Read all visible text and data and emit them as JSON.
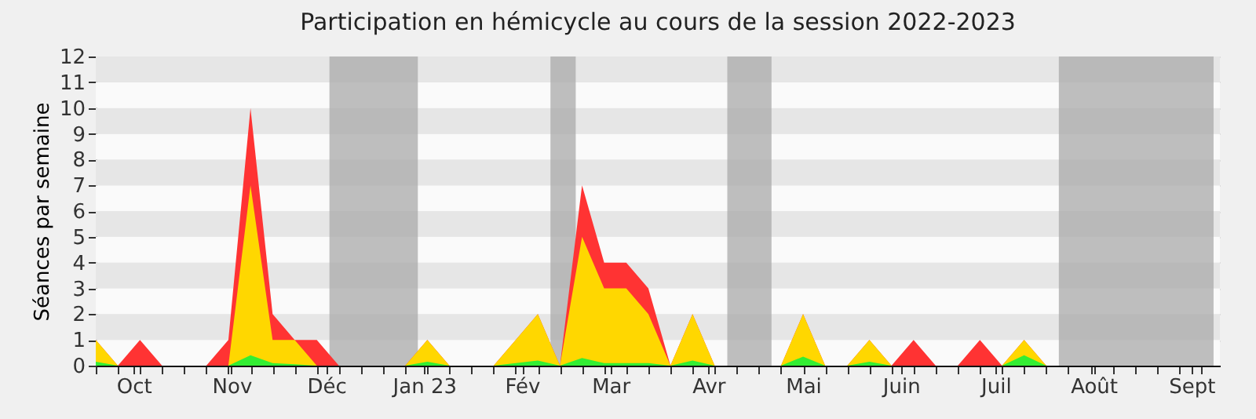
{
  "chart_data": {
    "type": "area",
    "title": "Participation en hémicycle au cours de la session 2022-2023",
    "ylabel": "Séances par semaine",
    "x": [
      "2022-09-19",
      "2022-09-26",
      "2022-10-03",
      "2022-10-10",
      "2022-10-17",
      "2022-10-24",
      "2022-10-31",
      "2022-11-07",
      "2022-11-14",
      "2022-11-21",
      "2022-11-28",
      "2022-12-05",
      "2022-12-12",
      "2022-12-19",
      "2022-12-26",
      "2023-01-02",
      "2023-01-09",
      "2023-01-16",
      "2023-01-23",
      "2023-01-30",
      "2023-02-06",
      "2023-02-13",
      "2023-02-20",
      "2023-02-27",
      "2023-03-06",
      "2023-03-13",
      "2023-03-20",
      "2023-03-27",
      "2023-04-03",
      "2023-04-10",
      "2023-04-17",
      "2023-04-24",
      "2023-05-01",
      "2023-05-08",
      "2023-05-15",
      "2023-05-22",
      "2023-05-29",
      "2023-06-05",
      "2023-06-12",
      "2023-06-19",
      "2023-06-26",
      "2023-07-03",
      "2023-07-10",
      "2023-07-17",
      "2023-07-24",
      "2023-07-31",
      "2023-08-07",
      "2023-08-14",
      "2023-08-21",
      "2023-08-28",
      "2023-09-04"
    ],
    "series": [
      {
        "color": "#ff3333",
        "values": [
          1,
          0,
          1,
          0,
          0,
          0,
          1,
          10,
          2,
          1,
          1,
          0,
          0,
          0,
          0,
          1,
          0,
          0,
          0,
          1,
          2,
          0,
          7,
          4,
          4,
          3,
          0,
          2,
          0,
          0,
          0,
          0,
          2,
          0,
          0,
          1,
          0,
          1,
          0,
          0,
          1,
          0,
          1,
          0,
          0,
          0,
          0,
          0,
          0,
          0,
          0
        ]
      },
      {
        "color": "#ffd700",
        "values": [
          1,
          0,
          0,
          0,
          0,
          0,
          0,
          7,
          1,
          1,
          0,
          0,
          0,
          0,
          0,
          1,
          0,
          0,
          0,
          1,
          2,
          0,
          5,
          3,
          3,
          2,
          0,
          2,
          0,
          0,
          0,
          0,
          2,
          0,
          0,
          1,
          0,
          0,
          0,
          0,
          0,
          0,
          1,
          0,
          0,
          0,
          0,
          0,
          0,
          0,
          0
        ]
      },
      {
        "color": "#33ee33",
        "values": [
          0.15,
          0,
          0,
          0,
          0,
          0,
          0,
          0.4,
          0.1,
          0.05,
          0,
          0,
          0,
          0,
          0,
          0.15,
          0,
          0,
          0,
          0.1,
          0.2,
          0,
          0.3,
          0.1,
          0.1,
          0.1,
          0,
          0.2,
          0,
          0,
          0,
          0,
          0.35,
          0,
          0,
          0.15,
          0,
          0,
          0,
          0,
          0,
          0,
          0.4,
          0,
          0,
          0,
          0,
          0,
          0,
          0,
          0
        ]
      }
    ],
    "xlim": [
      "2022-09-19",
      "2023-09-10"
    ],
    "xticks": [
      {
        "value": "2022-09-19",
        "label": null
      },
      {
        "value": "2022-09-26",
        "label": null
      },
      {
        "value": "2022-10-03",
        "label": null
      },
      {
        "value": "2022-10-10",
        "label": null
      },
      {
        "value": "2022-10-17",
        "label": null
      },
      {
        "value": "2022-10-24",
        "label": null
      },
      {
        "value": "2022-10-31",
        "label": null
      },
      {
        "value": "2022-11-07",
        "label": null
      },
      {
        "value": "2022-11-14",
        "label": null
      },
      {
        "value": "2022-11-21",
        "label": null
      },
      {
        "value": "2022-11-28",
        "label": null
      },
      {
        "value": "2022-12-05",
        "label": null
      },
      {
        "value": "2022-12-12",
        "label": null
      },
      {
        "value": "2022-12-19",
        "label": null
      },
      {
        "value": "2022-12-26",
        "label": null
      },
      {
        "value": "2023-01-02",
        "label": null
      },
      {
        "value": "2023-01-09",
        "label": null
      },
      {
        "value": "2023-01-16",
        "label": null
      },
      {
        "value": "2023-01-23",
        "label": null
      },
      {
        "value": "2023-01-30",
        "label": null
      },
      {
        "value": "2023-02-06",
        "label": null
      },
      {
        "value": "2023-02-13",
        "label": null
      },
      {
        "value": "2023-02-20",
        "label": null
      },
      {
        "value": "2023-02-27",
        "label": null
      },
      {
        "value": "2023-03-06",
        "label": null
      },
      {
        "value": "2023-03-13",
        "label": null
      },
      {
        "value": "2023-03-20",
        "label": null
      },
      {
        "value": "2023-03-27",
        "label": null
      },
      {
        "value": "2023-04-03",
        "label": null
      },
      {
        "value": "2023-04-10",
        "label": null
      },
      {
        "value": "2023-04-17",
        "label": null
      },
      {
        "value": "2023-04-24",
        "label": null
      },
      {
        "value": "2023-05-08",
        "label": null
      },
      {
        "value": "2023-05-15",
        "label": null
      },
      {
        "value": "2023-05-22",
        "label": null
      },
      {
        "value": "2023-05-29",
        "label": null
      },
      {
        "value": "2023-06-05",
        "label": null
      },
      {
        "value": "2023-06-12",
        "label": null
      },
      {
        "value": "2023-06-19",
        "label": null
      },
      {
        "value": "2023-06-26",
        "label": null
      },
      {
        "value": "2023-07-03",
        "label": null
      },
      {
        "value": "2023-07-10",
        "label": null
      },
      {
        "value": "2023-07-17",
        "label": null
      },
      {
        "value": "2023-07-24",
        "label": null
      },
      {
        "value": "2023-07-31",
        "label": null
      },
      {
        "value": "2023-08-07",
        "label": null
      },
      {
        "value": "2023-08-14",
        "label": null
      },
      {
        "value": "2023-08-21",
        "label": null
      },
      {
        "value": "2023-08-28",
        "label": null
      },
      {
        "value": "2023-09-04",
        "label": null
      },
      {
        "value": "2022-10-01",
        "label": "Oct"
      },
      {
        "value": "2022-11-01",
        "label": "Nov"
      },
      {
        "value": "2022-12-01",
        "label": "Déc"
      },
      {
        "value": "2023-01-01",
        "label": "Jan 23"
      },
      {
        "value": "2023-02-01",
        "label": "Fév"
      },
      {
        "value": "2023-03-01",
        "label": "Mar"
      },
      {
        "value": "2023-04-01",
        "label": "Avr"
      },
      {
        "value": "2023-05-01",
        "label": "Mai"
      },
      {
        "value": "2023-06-01",
        "label": "Juin"
      },
      {
        "value": "2023-07-01",
        "label": "Juil"
      },
      {
        "value": "2023-08-01",
        "label": "Août"
      },
      {
        "value": "2023-09-01",
        "label": "Sept"
      }
    ],
    "ylim": [
      0,
      12
    ],
    "yticks": [
      0,
      1,
      2,
      3,
      4,
      5,
      6,
      7,
      8,
      9,
      10,
      11,
      12
    ],
    "grid": "y",
    "bands": [
      {
        "axis": "x",
        "from": "2022-12-02",
        "to": "2022-12-30",
        "color": "#aaaaaa"
      },
      {
        "axis": "x",
        "from": "2023-02-10",
        "to": "2023-02-18",
        "color": "#aaaaaa"
      },
      {
        "axis": "x",
        "from": "2023-04-07",
        "to": "2023-04-21",
        "color": "#aaaaaa"
      },
      {
        "axis": "x",
        "from": "2023-07-21",
        "to": "2023-09-08",
        "color": "#aaaaaa"
      }
    ]
  }
}
